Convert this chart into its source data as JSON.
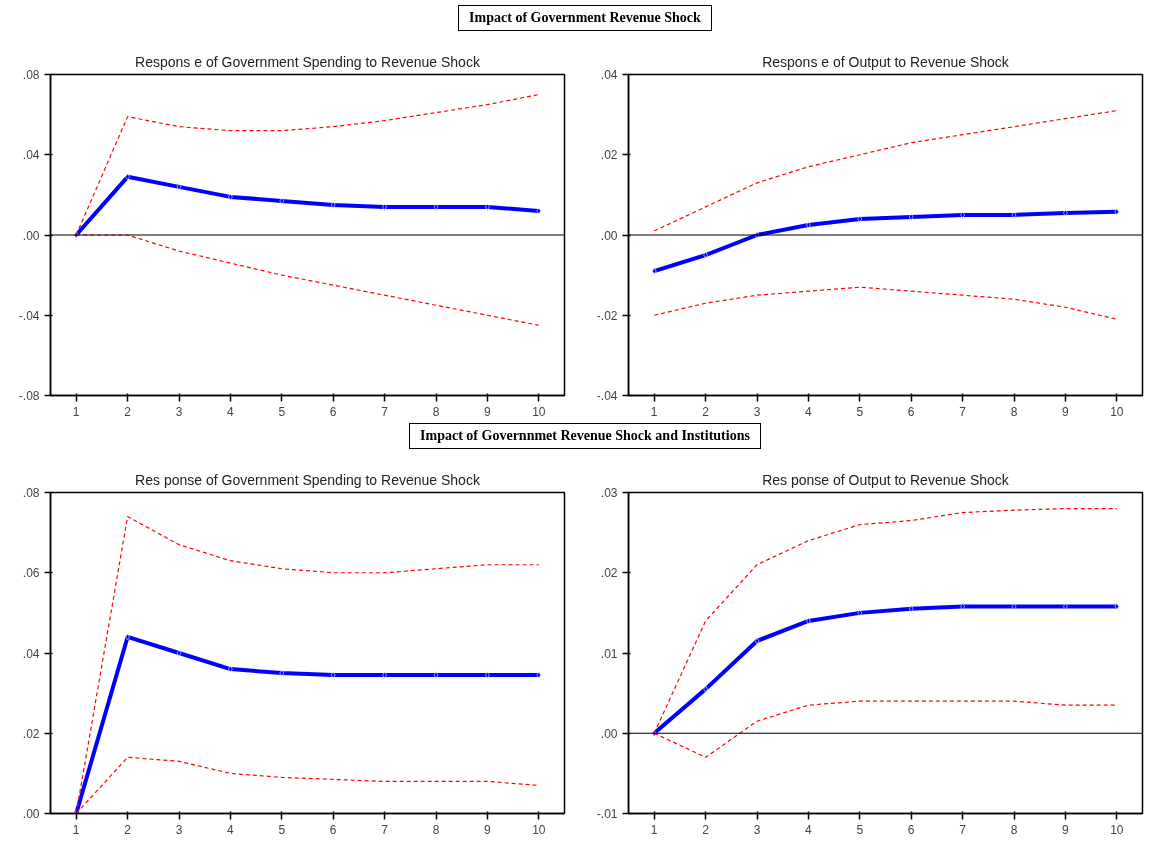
{
  "chart_data": [
    {
      "type": "line",
      "title": "Respons e of Government Spending to Revenue Shock",
      "annotations": [
        "Impact of Government Revenue Shock"
      ],
      "categories": [
        "1",
        "2",
        "3",
        "4",
        "5",
        "6",
        "7",
        "8",
        "9",
        "10"
      ],
      "marker": "diamond",
      "grid": false,
      "ylim": [
        -0.08,
        0.08
      ],
      "yticks": [
        {
          "value": -0.08,
          "label": "-.08"
        },
        {
          "value": -0.04,
          "label": "-.04"
        },
        {
          "value": 0,
          "label": ".00"
        },
        {
          "value": 0.04,
          "label": ".04"
        },
        {
          "value": 0.08,
          "label": ".08"
        }
      ],
      "ref_lines": [
        {
          "axis": "y",
          "value": 0,
          "color": "#000000"
        }
      ],
      "series": [
        {
          "color": "#0000ff",
          "values": [
            0,
            0.029,
            0.024,
            0.019,
            0.017,
            0.015,
            0.014,
            0.014,
            0.014,
            0.012
          ]
        },
        {
          "color": "#ff0000",
          "marker": "none",
          "line_style": "dashed",
          "values": [
            0,
            0.059,
            0.054,
            0.052,
            0.052,
            0.054,
            0.057,
            0.061,
            0.065,
            0.07
          ]
        },
        {
          "color": "#ff0000",
          "marker": "none",
          "line_style": "dashed",
          "values": [
            0,
            0,
            -0.008,
            -0.014,
            -0.02,
            -0.025,
            -0.03,
            -0.035,
            -0.04,
            -0.045
          ]
        }
      ]
    },
    {
      "type": "line",
      "title": "Respons e of Output to Revenue Shock",
      "categories": [
        "1",
        "2",
        "3",
        "4",
        "5",
        "6",
        "7",
        "8",
        "9",
        "10"
      ],
      "marker": "diamond",
      "grid": false,
      "ylim": [
        -0.04,
        0.04
      ],
      "yticks": [
        {
          "value": -0.04,
          "label": "-.04"
        },
        {
          "value": -0.02,
          "label": "-.02"
        },
        {
          "value": 0,
          "label": ".00"
        },
        {
          "value": 0.02,
          "label": ".02"
        },
        {
          "value": 0.04,
          "label": ".04"
        }
      ],
      "ref_lines": [
        {
          "axis": "y",
          "value": 0,
          "color": "#000000"
        }
      ],
      "series": [
        {
          "color": "#0000ff",
          "values": [
            -0.009,
            -0.005,
            0.0,
            0.0025,
            0.004,
            0.0045,
            0.005,
            0.005,
            0.0055,
            0.0058
          ]
        },
        {
          "color": "#ff0000",
          "marker": "none",
          "line_style": "dashed",
          "values": [
            0.001,
            0.007,
            0.013,
            0.017,
            0.02,
            0.023,
            0.025,
            0.027,
            0.029,
            0.031
          ]
        },
        {
          "color": "#ff0000",
          "marker": "none",
          "line_style": "dashed",
          "values": [
            -0.02,
            -0.017,
            -0.015,
            -0.014,
            -0.013,
            -0.014,
            -0.015,
            -0.016,
            -0.018,
            -0.021
          ]
        }
      ]
    },
    {
      "type": "line",
      "title": "Res ponse of Government Spending to Revenue Shock",
      "annotations": [
        "Impact of Governnmet Revenue Shock and Institutions"
      ],
      "categories": [
        "1",
        "2",
        "3",
        "4",
        "5",
        "6",
        "7",
        "8",
        "9",
        "10"
      ],
      "marker": "diamond",
      "grid": false,
      "ylim": [
        0,
        0.08
      ],
      "yticks": [
        {
          "value": 0,
          "label": ".00"
        },
        {
          "value": 0.02,
          "label": ".02"
        },
        {
          "value": 0.04,
          "label": ".04"
        },
        {
          "value": 0.06,
          "label": ".06"
        },
        {
          "value": 0.08,
          "label": ".08"
        }
      ],
      "series": [
        {
          "color": "#0000ff",
          "values": [
            0,
            0.044,
            0.04,
            0.036,
            0.035,
            0.0345,
            0.0345,
            0.0345,
            0.0345,
            0.0345
          ]
        },
        {
          "color": "#ff0000",
          "marker": "none",
          "line_style": "dashed",
          "values": [
            0,
            0.074,
            0.067,
            0.063,
            0.061,
            0.06,
            0.06,
            0.061,
            0.062,
            0.062
          ]
        },
        {
          "color": "#ff0000",
          "marker": "none",
          "line_style": "dashed",
          "values": [
            0,
            0.014,
            0.013,
            0.01,
            0.009,
            0.0085,
            0.008,
            0.008,
            0.008,
            0.007
          ]
        }
      ]
    },
    {
      "type": "line",
      "title": "Res ponse of Output to Revenue Shock",
      "categories": [
        "1",
        "2",
        "3",
        "4",
        "5",
        "6",
        "7",
        "8",
        "9",
        "10"
      ],
      "marker": "diamond",
      "grid": false,
      "ylim": [
        -0.01,
        0.03
      ],
      "yticks": [
        {
          "value": -0.01,
          "label": "-.01"
        },
        {
          "value": 0,
          "label": ".00"
        },
        {
          "value": 0.01,
          "label": ".01"
        },
        {
          "value": 0.02,
          "label": ".02"
        },
        {
          "value": 0.03,
          "label": ".03"
        }
      ],
      "ref_lines": [
        {
          "axis": "y",
          "value": 0,
          "color": "#000000"
        }
      ],
      "series": [
        {
          "color": "#0000ff",
          "values": [
            0,
            0.0055,
            0.0115,
            0.014,
            0.015,
            0.0155,
            0.0158,
            0.0158,
            0.0158,
            0.0158
          ]
        },
        {
          "color": "#ff0000",
          "marker": "none",
          "line_style": "dashed",
          "values": [
            0,
            0.014,
            0.021,
            0.024,
            0.026,
            0.0265,
            0.0275,
            0.0278,
            0.028,
            0.028
          ]
        },
        {
          "color": "#ff0000",
          "marker": "none",
          "line_style": "dashed",
          "values": [
            0,
            -0.003,
            0.0015,
            0.0035,
            0.004,
            0.004,
            0.004,
            0.004,
            0.0035,
            0.0035
          ]
        }
      ]
    }
  ]
}
